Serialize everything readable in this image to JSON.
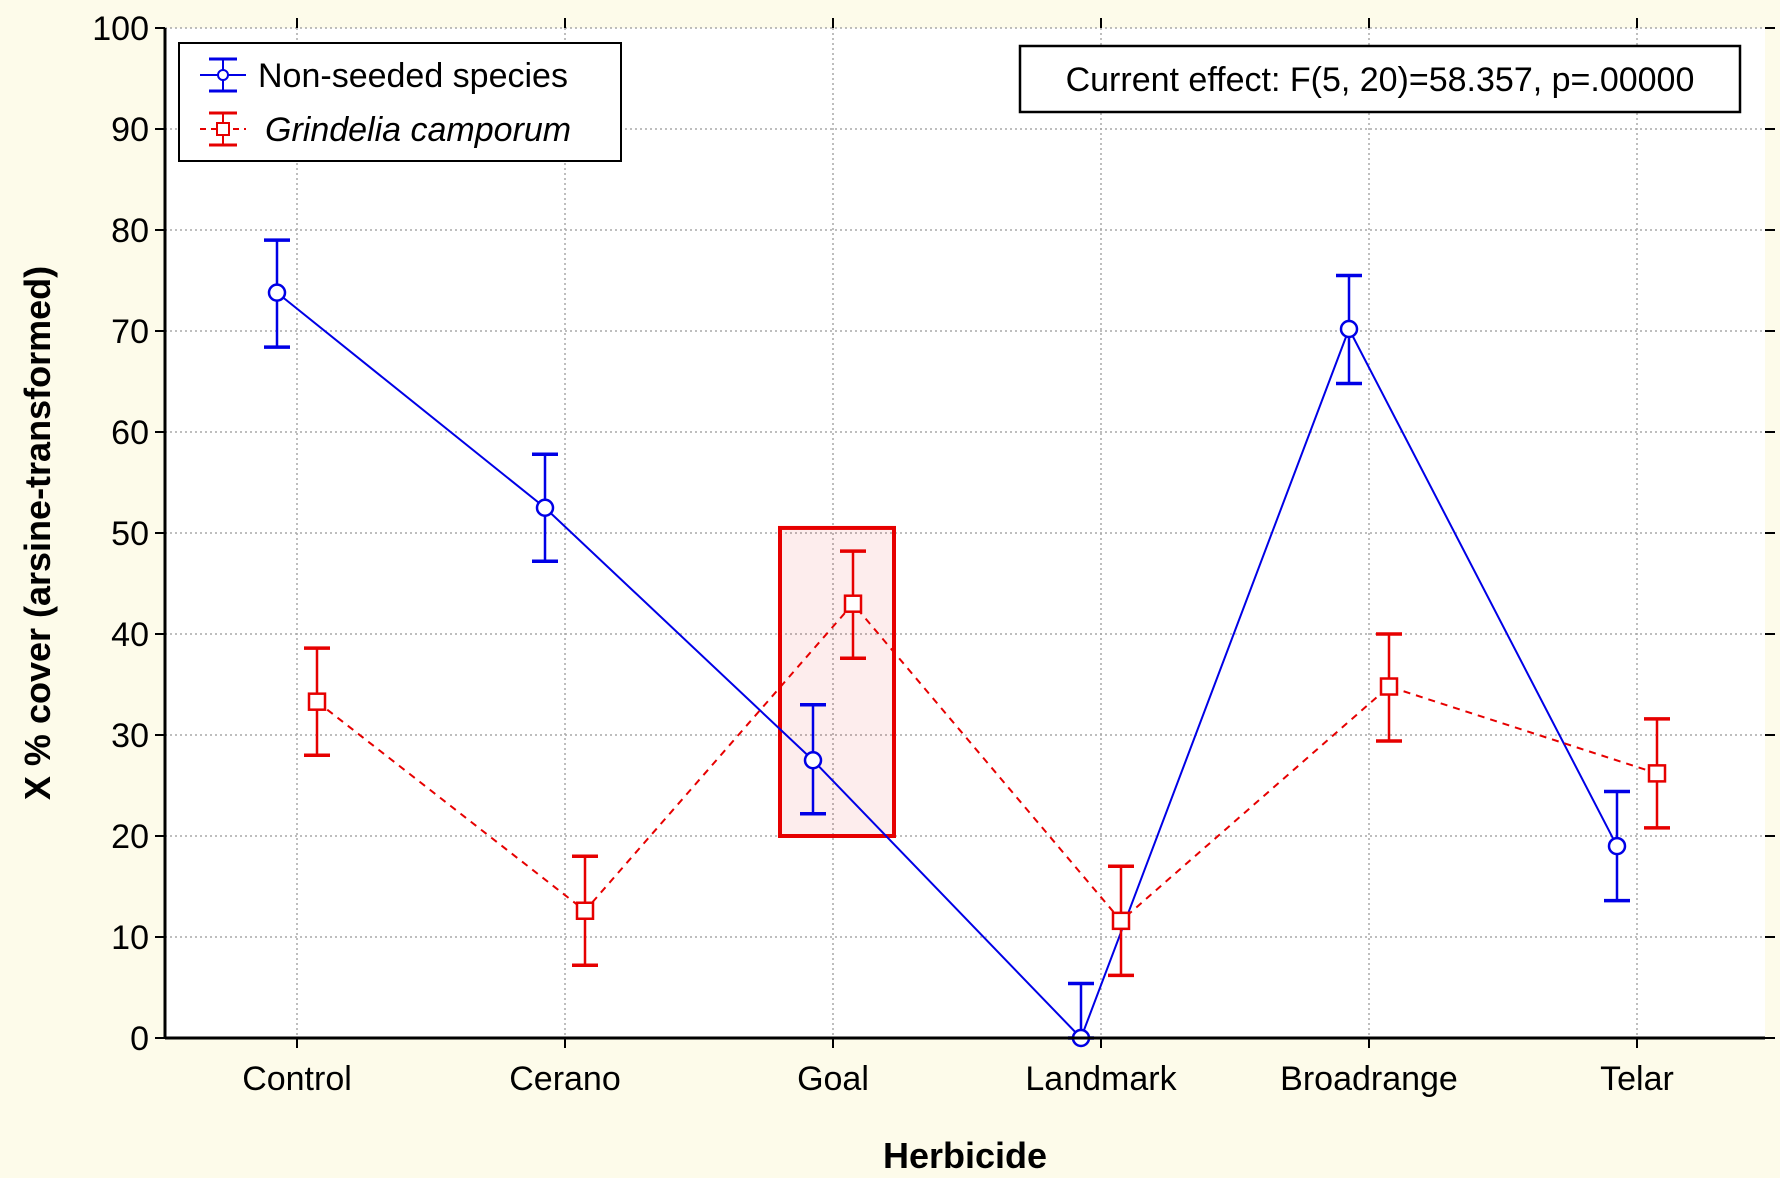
{
  "chart_data": {
    "type": "line",
    "xlabel": "Herbicide",
    "ylabel": "X % cover (arsine-transformed)",
    "ylim": [
      0,
      100
    ],
    "yticks": [
      0,
      10,
      20,
      30,
      40,
      50,
      60,
      70,
      80,
      90,
      100
    ],
    "categories": [
      "Control",
      "Cerano",
      "Goal",
      "Landmark",
      "Broadrange",
      "Telar"
    ],
    "grid": true,
    "legend_position": "top-left",
    "annotation": "Current effect: F(5, 20)=58.357, p=.00000",
    "series": [
      {
        "name": "Non-seeded species",
        "color": "#0000e6",
        "line_style": "solid",
        "marker": "circle",
        "values": [
          73.8,
          52.5,
          27.5,
          0.0,
          70.2,
          19.0
        ],
        "err_low": [
          68.4,
          47.2,
          22.2,
          0.0,
          64.8,
          13.6
        ],
        "err_high": [
          79.0,
          57.8,
          33.0,
          5.4,
          75.5,
          24.4
        ]
      },
      {
        "name": "Grindelia camporum",
        "color": "#e60000",
        "line_style": "dashed",
        "marker": "square",
        "values": [
          33.3,
          12.6,
          43.0,
          11.6,
          34.8,
          26.2
        ],
        "err_low": [
          28.0,
          7.2,
          37.6,
          6.2,
          29.4,
          20.8
        ],
        "err_high": [
          38.6,
          18.0,
          48.2,
          17.0,
          40.0,
          31.6
        ]
      }
    ],
    "highlight": {
      "category": "Goal",
      "y_range": [
        20.0,
        50.5
      ],
      "color": "#e60000"
    }
  }
}
